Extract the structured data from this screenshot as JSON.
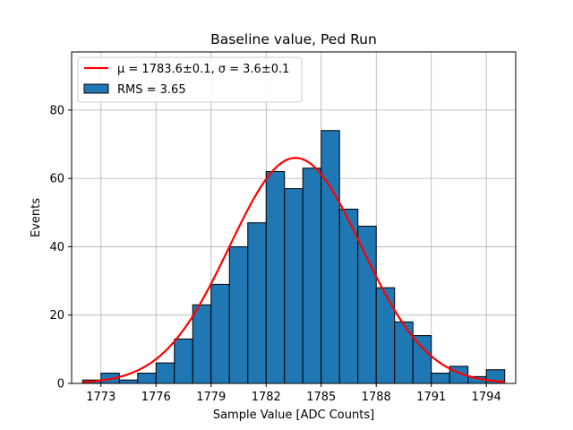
{
  "chart_data": {
    "type": "bar",
    "title": "Baseline value, Ped Run",
    "xlabel": "Sample Value [ADC Counts]",
    "ylabel": "Events",
    "xlim": [
      1771.4,
      1795.6
    ],
    "ylim": [
      0,
      97
    ],
    "x_ticks": [
      1773,
      1776,
      1779,
      1782,
      1785,
      1788,
      1791,
      1794
    ],
    "y_ticks": [
      0,
      20,
      40,
      60,
      80
    ],
    "grid": true,
    "legend_position": "top-left",
    "histogram": {
      "name": "RMS = 3.65",
      "color": "#1f77b4",
      "edge_color": "#000000",
      "bin_edges": [
        1772.0,
        1773.0,
        1774.0,
        1775.0,
        1776.0,
        1777.0,
        1778.0,
        1779.0,
        1780.0,
        1781.0,
        1782.0,
        1783.0,
        1784.0,
        1785.0,
        1786.0,
        1787.0,
        1788.0,
        1789.0,
        1790.0,
        1791.0,
        1792.0,
        1793.0,
        1794.0,
        1795.0
      ],
      "counts": [
        1,
        3,
        1,
        3,
        6,
        13,
        23,
        29,
        40,
        47,
        62,
        57,
        63,
        74,
        51,
        46,
        28,
        18,
        14,
        3,
        5,
        2,
        4
      ]
    },
    "fit": {
      "name": "μ = 1783.6±0.1, σ = 3.6±0.1",
      "color": "#ff0000",
      "mean": 1783.6,
      "sigma": 3.6,
      "amplitude": 66,
      "x_range": [
        1772.0,
        1795.0
      ]
    }
  }
}
